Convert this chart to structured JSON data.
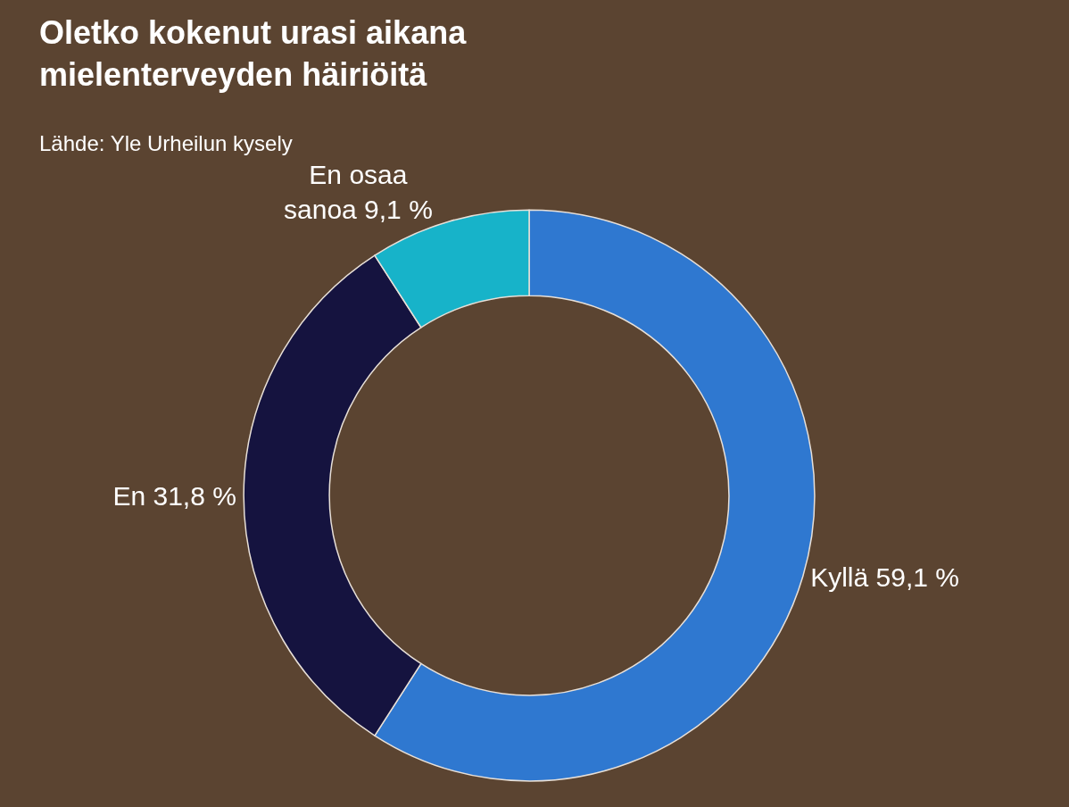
{
  "chart_data": {
    "type": "donut",
    "title": "Oletko kokenut urasi aikana mielenterveyden häiriöitä",
    "subtitle": "Lähde: Yle Urheilun kysely",
    "categories": [
      "Kyllä",
      "En",
      "En osaa sanoa"
    ],
    "values": [
      59.1,
      31.8,
      9.1
    ],
    "value_labels": [
      "59,1 %",
      "31,8 %",
      "9,1 %"
    ],
    "colors": [
      "#2f78d0",
      "#15133f",
      "#17b3c9"
    ]
  }
}
